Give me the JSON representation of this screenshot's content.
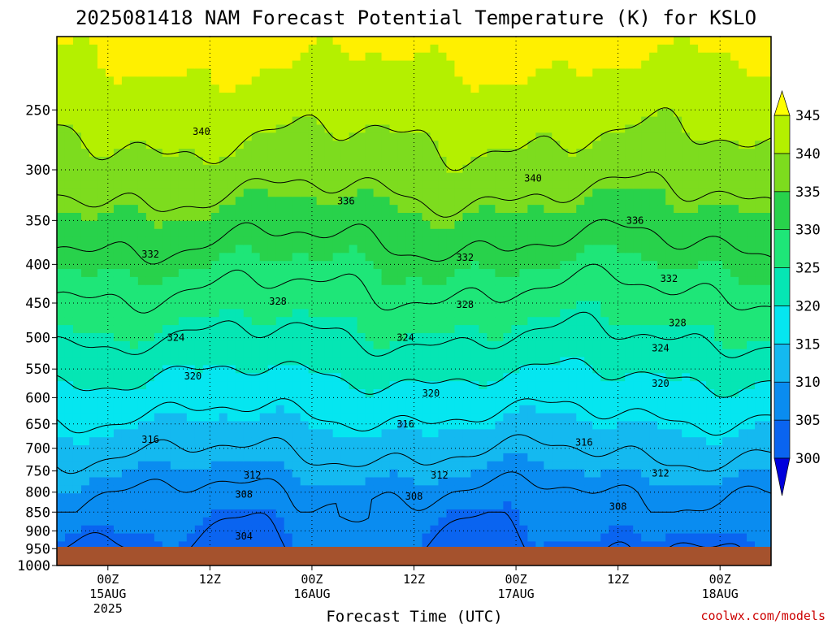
{
  "title": "2025081418 NAM Forecast Potential Temperature (K) for KSLO",
  "credit": "coolwx.com/models",
  "chart_data": {
    "type": "heatmap",
    "title": "2025081418 NAM Forecast Potential Temperature (K) for KSLO",
    "xlabel": "Forecast Time (UTC)",
    "ylabel": "",
    "y_ticks": [
      250,
      300,
      350,
      400,
      450,
      500,
      550,
      600,
      650,
      700,
      750,
      800,
      850,
      900,
      950,
      1000
    ],
    "y_scale": "log",
    "y_inverted": true,
    "ylim": [
      1000,
      200
    ],
    "x_range_hours": [
      -6,
      78
    ],
    "x_ticks": [
      {
        "hour": 0,
        "label": "00Z",
        "sub": "15AUG",
        "sub2": "2025"
      },
      {
        "hour": 12,
        "label": "12Z",
        "sub": "",
        "sub2": ""
      },
      {
        "hour": 24,
        "label": "00Z",
        "sub": "16AUG",
        "sub2": ""
      },
      {
        "hour": 36,
        "label": "12Z",
        "sub": "",
        "sub2": ""
      },
      {
        "hour": 48,
        "label": "00Z",
        "sub": "17AUG",
        "sub2": ""
      },
      {
        "hour": 60,
        "label": "12Z",
        "sub": "",
        "sub2": ""
      },
      {
        "hour": 72,
        "label": "00Z",
        "sub": "18AUG",
        "sub2": ""
      }
    ],
    "grid": true,
    "colorbar": {
      "levels": [
        300,
        305,
        310,
        315,
        320,
        325,
        330,
        335,
        340,
        345
      ],
      "colors": [
        "#0a3cf0",
        "#0a64f0",
        "#0a8cf0",
        "#14b9f0",
        "#05e6f0",
        "#05e6b4",
        "#1ee678",
        "#28d24b",
        "#7ddc1e",
        "#b4f000",
        "#fff000"
      ],
      "under_color": "#0000dc",
      "over_color": "#ffff00",
      "ground_color": "#a5522d"
    },
    "contour_levels": [
      304,
      308,
      312,
      316,
      320,
      324,
      328,
      332,
      336,
      340
    ],
    "contour_labels": [
      {
        "value": 340,
        "hour": 11,
        "pressure": 267
      },
      {
        "value": 340,
        "hour": 50,
        "pressure": 308
      },
      {
        "value": 336,
        "hour": 28,
        "pressure": 330
      },
      {
        "value": 336,
        "hour": 62,
        "pressure": 350
      },
      {
        "value": 332,
        "hour": 5,
        "pressure": 388
      },
      {
        "value": 332,
        "hour": 42,
        "pressure": 392
      },
      {
        "value": 332,
        "hour": 66,
        "pressure": 418
      },
      {
        "value": 328,
        "hour": 20,
        "pressure": 448
      },
      {
        "value": 328,
        "hour": 42,
        "pressure": 452
      },
      {
        "value": 328,
        "hour": 67,
        "pressure": 478
      },
      {
        "value": 324,
        "hour": 8,
        "pressure": 500
      },
      {
        "value": 324,
        "hour": 35,
        "pressure": 500
      },
      {
        "value": 324,
        "hour": 65,
        "pressure": 516
      },
      {
        "value": 320,
        "hour": 10,
        "pressure": 562
      },
      {
        "value": 320,
        "hour": 38,
        "pressure": 592
      },
      {
        "value": 320,
        "hour": 65,
        "pressure": 575
      },
      {
        "value": 316,
        "hour": 5,
        "pressure": 682
      },
      {
        "value": 316,
        "hour": 35,
        "pressure": 650
      },
      {
        "value": 316,
        "hour": 56,
        "pressure": 688
      },
      {
        "value": 312,
        "hour": 17,
        "pressure": 760
      },
      {
        "value": 312,
        "hour": 39,
        "pressure": 760
      },
      {
        "value": 312,
        "hour": 65,
        "pressure": 755
      },
      {
        "value": 308,
        "hour": 16,
        "pressure": 805
      },
      {
        "value": 308,
        "hour": 36,
        "pressure": 810
      },
      {
        "value": 308,
        "hour": 60,
        "pressure": 836
      },
      {
        "value": 304,
        "hour": 16,
        "pressure": 915
      }
    ]
  }
}
